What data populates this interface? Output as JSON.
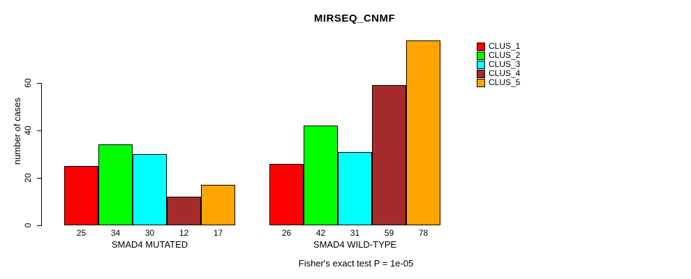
{
  "chart_data": {
    "type": "bar",
    "title": "MIRSEQ_CNMF",
    "ylabel": "number of cases",
    "xlabel": "",
    "yticks": [
      0,
      20,
      40,
      60
    ],
    "ylim": [
      0,
      78
    ],
    "grid": false,
    "legend_position": "right",
    "footer": "Fisher's exact test P = 1e-05",
    "categories": [
      "SMAD4 MUTATED",
      "SMAD4 WILD-TYPE"
    ],
    "groups": [
      {
        "label": "SMAD4 MUTATED",
        "values": [
          25,
          34,
          30,
          12,
          17
        ]
      },
      {
        "label": "SMAD4 WILD-TYPE",
        "values": [
          26,
          42,
          31,
          59,
          78
        ]
      }
    ],
    "series_names": [
      "CLUS_1",
      "CLUS_2",
      "CLUS_3",
      "CLUS_4",
      "CLUS_5"
    ],
    "colors": [
      "#FF0000",
      "#00FF00",
      "#00FFFF",
      "#A52A2A",
      "#FFA500"
    ],
    "bar_border_color": "#000000",
    "background_color": "#FFFFFF"
  }
}
